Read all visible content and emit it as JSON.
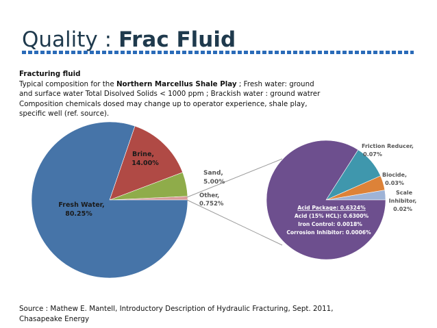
{
  "slide": {
    "title_light": "Quality : ",
    "title_bold": "Frac Fluid",
    "heading": "Fracturing fluid",
    "line1_a": "Typical composition for the ",
    "line1_bold": "Northern Marcellus Shale Play",
    "line1_b": " ; Fresh water: ground",
    "line2": "and surface water Total Disolved Solids < 1000 ppm ; Brackish water : ground watrer",
    "line3": "Composition chemicals dosed may change up to operator experience, shale play,",
    "line4": "specific well (ref. source).",
    "source_line1": "Source : Mathew E. Mantell, Introductory Description of Hydraulic Fracturing, Sept. 2011,",
    "source_line2": "Chasapeake Energy"
  },
  "chart_data": [
    {
      "type": "pie",
      "slices": [
        {
          "name": "Fresh Water,",
          "value_label": "80.25%",
          "value": 80.25,
          "color": "#4674a8"
        },
        {
          "name": "Brine,",
          "value_label": "14.00%",
          "value": 14.0,
          "color": "#b04a45"
        },
        {
          "name": "Sand,",
          "value_label": "5.00%",
          "value": 5.0,
          "color": "#8fac4a"
        },
        {
          "name": "Other,",
          "value_label": "0.752%",
          "value": 0.752,
          "color": "#d99b98"
        }
      ]
    },
    {
      "type": "pie",
      "slices": [
        {
          "name": "Acid Package: 0.6324%",
          "value": 0.6324,
          "color": "#6d4f8e"
        },
        {
          "name": "Friction Reducer,",
          "value_label": "0.07%",
          "value": 0.07,
          "color": "#3f97ad"
        },
        {
          "name": "Biocide,",
          "value_label": "0.03%",
          "value": 0.03,
          "color": "#dd8238"
        },
        {
          "name": "Scale Inhibitor,",
          "value_label": "0.02%",
          "value": 0.02,
          "color": "#9eb3d6"
        }
      ],
      "acid_components": [
        "Acid (15% HCL): 0.6300%",
        "Iron Control: 0.0018%",
        "Corrosion Inhibitor: 0.0006%"
      ]
    }
  ]
}
